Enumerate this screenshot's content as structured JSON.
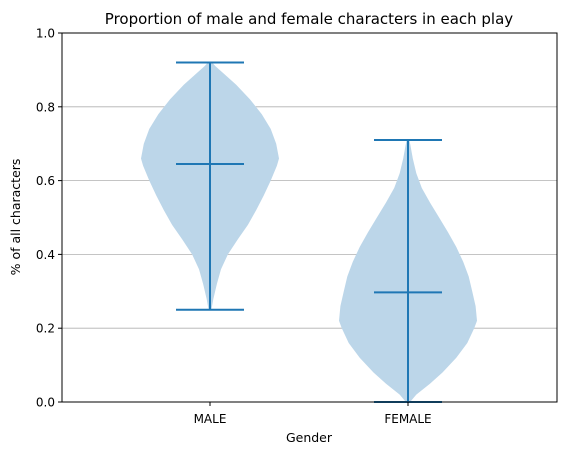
{
  "chart_data": {
    "type": "violin",
    "title": "Proportion of male and female characters in each play",
    "xlabel": "Gender",
    "ylabel": "% of all characters",
    "categories": [
      "MALE",
      "FEMALE"
    ],
    "ylim": [
      0,
      1
    ],
    "yticks": [
      0.0,
      0.2,
      0.4,
      0.6,
      0.8,
      1.0
    ],
    "ytick_labels": [
      "0.0",
      "0.2",
      "0.4",
      "0.6",
      "0.8",
      "1.0"
    ],
    "grid": {
      "y": true,
      "x": false
    },
    "colors": {
      "body": "#bcd6e9",
      "lines": "#1f77b4",
      "grid": "#b0b0b0"
    },
    "series": [
      {
        "category": "MALE",
        "min": 0.25,
        "median": 0.645,
        "max": 0.92,
        "density_profile": [
          [
            0.25,
            0.02
          ],
          [
            0.28,
            0.05
          ],
          [
            0.32,
            0.1
          ],
          [
            0.36,
            0.16
          ],
          [
            0.4,
            0.26
          ],
          [
            0.44,
            0.4
          ],
          [
            0.48,
            0.55
          ],
          [
            0.52,
            0.67
          ],
          [
            0.56,
            0.78
          ],
          [
            0.6,
            0.88
          ],
          [
            0.64,
            0.97
          ],
          [
            0.66,
            1.0
          ],
          [
            0.7,
            0.96
          ],
          [
            0.74,
            0.88
          ],
          [
            0.78,
            0.75
          ],
          [
            0.82,
            0.58
          ],
          [
            0.86,
            0.38
          ],
          [
            0.89,
            0.2
          ],
          [
            0.91,
            0.08
          ],
          [
            0.92,
            0.03
          ]
        ]
      },
      {
        "category": "FEMALE",
        "min": 0.0,
        "median": 0.297,
        "max": 0.71,
        "density_profile": [
          [
            0.0,
            0.03
          ],
          [
            0.02,
            0.12
          ],
          [
            0.05,
            0.32
          ],
          [
            0.08,
            0.5
          ],
          [
            0.12,
            0.7
          ],
          [
            0.16,
            0.86
          ],
          [
            0.2,
            0.96
          ],
          [
            0.22,
            1.0
          ],
          [
            0.26,
            0.98
          ],
          [
            0.3,
            0.93
          ],
          [
            0.34,
            0.88
          ],
          [
            0.38,
            0.8
          ],
          [
            0.42,
            0.7
          ],
          [
            0.46,
            0.58
          ],
          [
            0.5,
            0.45
          ],
          [
            0.54,
            0.32
          ],
          [
            0.58,
            0.2
          ],
          [
            0.62,
            0.12
          ],
          [
            0.66,
            0.07
          ],
          [
            0.69,
            0.04
          ],
          [
            0.71,
            0.02
          ]
        ]
      }
    ]
  }
}
